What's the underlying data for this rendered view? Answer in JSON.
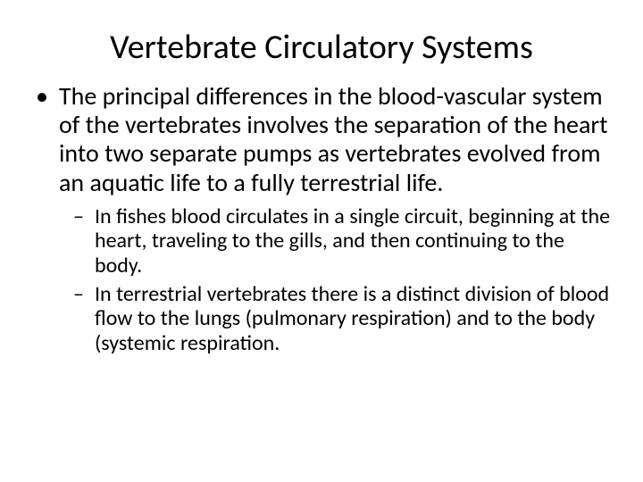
{
  "title": "Vertebrate Circulatory Systems",
  "bullets": {
    "main": "The principal differences in the blood-vascular system of the vertebrates involves the separation of the heart into two separate pumps as vertebrates evolved from an aquatic life to a fully terrestrial life.",
    "sub1": "In fishes blood circulates in a single circuit, beginning at the heart, traveling to the gills, and then continuing to the body.",
    "sub2": "In terrestrial vertebrates there is a distinct division of blood flow to the lungs (pulmonary respiration) and to the body (systemic respiration."
  },
  "style": {
    "background_color": "#ffffff",
    "text_color": "#000000",
    "title_fontsize": 38,
    "level1_fontsize": 28,
    "level2_fontsize": 24,
    "font_family": "Calibri"
  }
}
